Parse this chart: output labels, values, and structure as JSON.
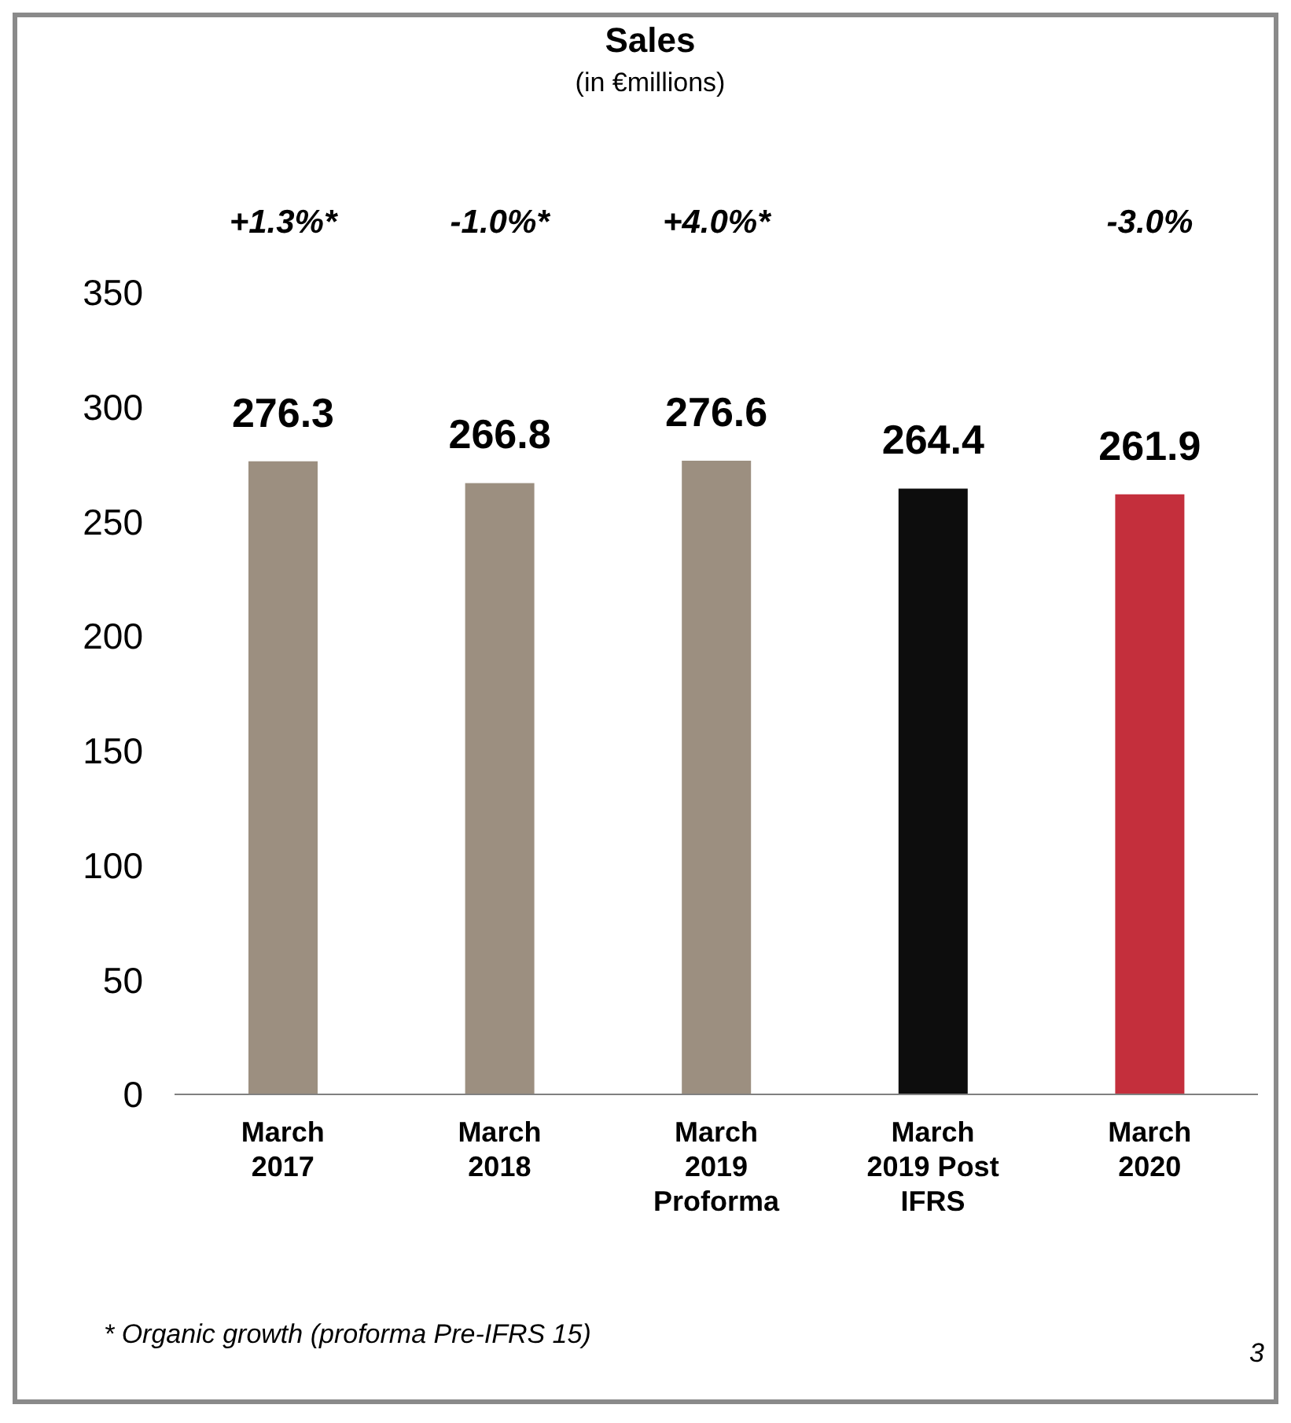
{
  "chart_data": {
    "type": "bar",
    "title": "Sales",
    "subtitle": "(in €millions)",
    "categories": [
      "March 2017",
      "March 2018",
      "March 2019 Proforma",
      "March 2019 Post IFRS",
      "March 2020"
    ],
    "values": [
      276.3,
      266.8,
      276.6,
      264.4,
      261.9
    ],
    "colors": [
      "#9c8f80",
      "#9c8f80",
      "#9c8f80",
      "#0d0d0d",
      "#c42f3c"
    ],
    "ylim": [
      0,
      350
    ],
    "yticks": [
      0,
      50,
      100,
      150,
      200,
      250,
      300,
      350
    ],
    "grid": false,
    "data_labels": true,
    "legend": false,
    "annotations": [
      "+1.3%*",
      "-1.0%*",
      "+4.0%*",
      "-3.0%",
      "* Organic growth (proforma Pre-IFRS 15)",
      "3"
    ]
  }
}
